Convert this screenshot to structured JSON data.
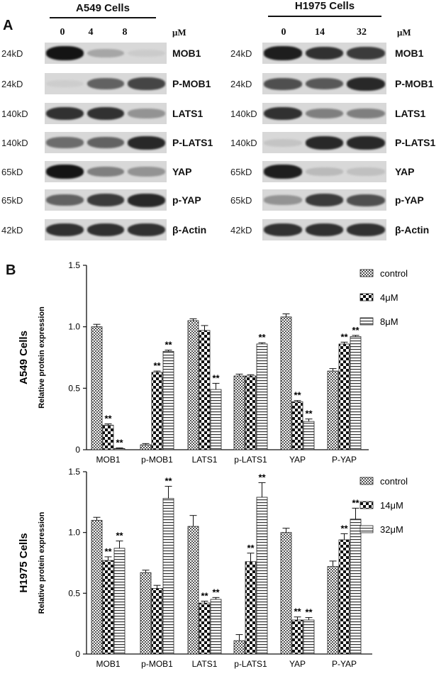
{
  "panel_a_label": "A",
  "panel_b_label": "B",
  "blots": [
    {
      "title": "A549 Cells",
      "doses": [
        "0",
        "4",
        "8"
      ],
      "unit": "μM",
      "rows": [
        {
          "mw": "24kD",
          "protein": "MOB1",
          "intensity": [
            1.0,
            0.25,
            0.06
          ]
        },
        {
          "mw": "24kD",
          "protein": "P-MOB1",
          "intensity": [
            0.05,
            0.6,
            0.75
          ]
        },
        {
          "mw": "140kD",
          "protein": "LATS1",
          "intensity": [
            0.85,
            0.85,
            0.35
          ]
        },
        {
          "mw": "140kD",
          "protein": "P-LATS1",
          "intensity": [
            0.55,
            0.6,
            0.9
          ]
        },
        {
          "mw": "65kD",
          "protein": "YAP",
          "intensity": [
            1.0,
            0.45,
            0.35
          ]
        },
        {
          "mw": "65kD",
          "protein": "p-YAP",
          "intensity": [
            0.6,
            0.8,
            0.9
          ]
        },
        {
          "mw": "42kD",
          "protein": "β-Actin",
          "intensity": [
            0.85,
            0.85,
            0.85
          ]
        }
      ]
    },
    {
      "title": "H1975 Cells",
      "doses": [
        "0",
        "14",
        "32"
      ],
      "unit": "μM",
      "rows": [
        {
          "mw": "24kD",
          "protein": "MOB1",
          "intensity": [
            0.95,
            0.85,
            0.8
          ]
        },
        {
          "mw": "24kD",
          "protein": "P-MOB1",
          "intensity": [
            0.7,
            0.65,
            0.9
          ]
        },
        {
          "mw": "140kD",
          "protein": "LATS1",
          "intensity": [
            0.85,
            0.45,
            0.45
          ]
        },
        {
          "mw": "140kD",
          "protein": "P-LATS1",
          "intensity": [
            0.1,
            0.9,
            0.9
          ]
        },
        {
          "mw": "65kD",
          "protein": "YAP",
          "intensity": [
            0.95,
            0.15,
            0.12
          ]
        },
        {
          "mw": "65kD",
          "protein": "p-YAP",
          "intensity": [
            0.35,
            0.8,
            0.7
          ]
        },
        {
          "mw": "42kD",
          "protein": "β-Actin",
          "intensity": [
            0.85,
            0.85,
            0.85
          ]
        }
      ]
    }
  ],
  "chart_data": [
    {
      "type": "bar",
      "title": "",
      "ylabel": "Relative protein expression",
      "side_label": "A549 Cells",
      "ylim": [
        0,
        1.5
      ],
      "yticks": [
        "0",
        "0.5",
        "1.0",
        "1.5"
      ],
      "ytick_values": [
        0,
        0.5,
        1.0,
        1.5
      ],
      "categories": [
        "MOB1",
        "p-MOB1",
        "LATS1",
        "p-LATS1",
        "YAP",
        "P-YAP"
      ],
      "series": [
        {
          "name": "control",
          "values": [
            1.0,
            0.04,
            1.05,
            0.6,
            1.08,
            0.64
          ],
          "errors": [
            0.02,
            0.01,
            0.015,
            0.015,
            0.025,
            0.02
          ],
          "sig": [
            "",
            "",
            "",
            "",
            "",
            ""
          ]
        },
        {
          "name": "4μM",
          "values": [
            0.2,
            0.63,
            0.97,
            0.6,
            0.39,
            0.86
          ],
          "errors": [
            0.01,
            0.01,
            0.04,
            0.01,
            0.01,
            0.015
          ],
          "sig": [
            "**",
            "**",
            "",
            "",
            "**",
            "**"
          ]
        },
        {
          "name": "8μM",
          "values": [
            0.01,
            0.8,
            0.49,
            0.86,
            0.23,
            0.92
          ],
          "errors": [
            0.005,
            0.01,
            0.05,
            0.01,
            0.02,
            0.01
          ],
          "sig": [
            "**",
            "**",
            "**",
            "**",
            "**",
            "**"
          ]
        }
      ],
      "legend_position": "top-right",
      "grid": false
    },
    {
      "type": "bar",
      "title": "",
      "ylabel": "Relative protein expression",
      "side_label": "H1975 Cells",
      "ylim": [
        0,
        1.5
      ],
      "yticks": [
        "0",
        "0.5",
        "1.0",
        "1.5"
      ],
      "ytick_values": [
        0,
        0.5,
        1.0,
        1.5
      ],
      "categories": [
        "MOB1",
        "p-MOB1",
        "LATS1",
        "p-LATS1",
        "YAP",
        "P-YAP"
      ],
      "series": [
        {
          "name": "control",
          "values": [
            1.1,
            0.67,
            1.05,
            0.11,
            1.0,
            0.72
          ],
          "errors": [
            0.025,
            0.02,
            0.09,
            0.05,
            0.035,
            0.045
          ],
          "sig": [
            "",
            "",
            "",
            "",
            "",
            ""
          ]
        },
        {
          "name": "14μM",
          "values": [
            0.77,
            0.54,
            0.42,
            0.76,
            0.28,
            0.94
          ],
          "errors": [
            0.03,
            0.025,
            0.015,
            0.07,
            0.025,
            0.05
          ],
          "sig": [
            "**",
            "",
            "**",
            "**",
            "**",
            "**"
          ]
        },
        {
          "name": "32μM",
          "values": [
            0.87,
            1.28,
            0.45,
            1.29,
            0.28,
            1.11
          ],
          "errors": [
            0.06,
            0.1,
            0.015,
            0.12,
            0.02,
            0.09
          ],
          "sig": [
            "**",
            "**",
            "**",
            "**",
            "**",
            "**"
          ]
        }
      ],
      "legend_position": "top-right",
      "grid": false
    }
  ]
}
